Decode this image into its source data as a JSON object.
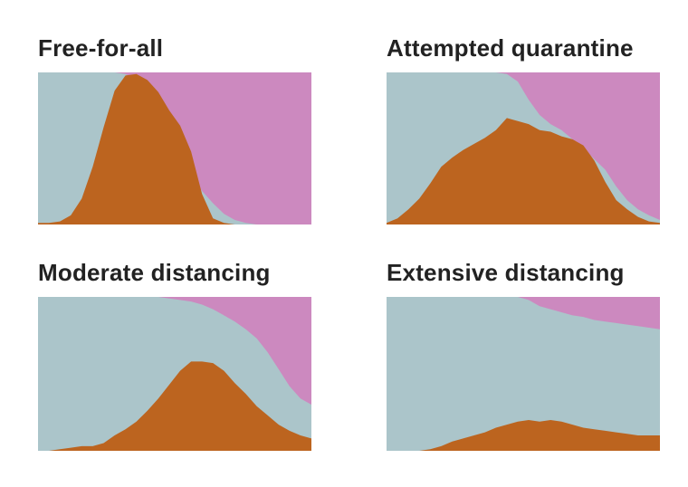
{
  "colors": {
    "healthy": "#abc5ca",
    "sick": "#bc641f",
    "recovered": "#cc89bf"
  },
  "chart_data": [
    {
      "type": "area",
      "stacking": "100%",
      "title": "Free-for-all",
      "series_order": [
        "sick",
        "healthy",
        "recovered"
      ],
      "x": [
        0,
        4,
        8,
        12,
        16,
        20,
        24,
        28,
        32,
        36,
        40,
        44,
        48,
        52,
        56,
        60,
        64,
        68,
        72,
        76,
        80,
        84,
        88,
        92,
        96,
        100
      ],
      "recovered": [
        0,
        0,
        0,
        0,
        0,
        0,
        0,
        0,
        1,
        5,
        14,
        28,
        45,
        58,
        68,
        78,
        86,
        93,
        97,
        99,
        100,
        100,
        100,
        100,
        100,
        100
      ],
      "sick": [
        1,
        1,
        2,
        6,
        17,
        38,
        64,
        88,
        98,
        99,
        95,
        87,
        75,
        65,
        48,
        20,
        4,
        1,
        0,
        0,
        0,
        0,
        0,
        0,
        0,
        0
      ]
    },
    {
      "type": "area",
      "stacking": "100%",
      "title": "Attempted quarantine",
      "series_order": [
        "sick",
        "healthy",
        "recovered"
      ],
      "x": [
        0,
        4,
        8,
        12,
        16,
        20,
        24,
        28,
        32,
        36,
        40,
        44,
        48,
        52,
        56,
        60,
        64,
        68,
        72,
        76,
        80,
        84,
        88,
        92,
        96,
        100
      ],
      "recovered": [
        0,
        0,
        0,
        0,
        0,
        0,
        0,
        0,
        0,
        0,
        0,
        1,
        6,
        18,
        28,
        34,
        38,
        44,
        50,
        57,
        64,
        75,
        84,
        90,
        94,
        97
      ],
      "sick": [
        1,
        4,
        10,
        17,
        27,
        38,
        44,
        49,
        53,
        57,
        62,
        70,
        68,
        66,
        62,
        61,
        58,
        56,
        52,
        42,
        28,
        16,
        10,
        5,
        2,
        1
      ]
    },
    {
      "type": "area",
      "stacking": "100%",
      "title": "Moderate distancing",
      "series_order": [
        "sick",
        "healthy",
        "recovered"
      ],
      "x": [
        0,
        4,
        8,
        12,
        16,
        20,
        24,
        28,
        32,
        36,
        40,
        44,
        48,
        52,
        56,
        60,
        64,
        68,
        72,
        76,
        80,
        84,
        88,
        92,
        96,
        100
      ],
      "recovered": [
        0,
        0,
        0,
        0,
        0,
        0,
        0,
        0,
        0,
        0,
        0,
        0,
        1,
        2,
        3,
        5,
        8,
        12,
        16,
        21,
        27,
        36,
        47,
        58,
        66,
        70
      ],
      "sick": [
        0,
        0,
        1,
        2,
        3,
        3,
        5,
        10,
        14,
        19,
        26,
        34,
        43,
        52,
        58,
        58,
        57,
        52,
        44,
        37,
        29,
        23,
        17,
        13,
        10,
        8
      ]
    },
    {
      "type": "area",
      "stacking": "100%",
      "title": "Extensive distancing",
      "series_order": [
        "sick",
        "healthy",
        "recovered"
      ],
      "x": [
        0,
        4,
        8,
        12,
        16,
        20,
        24,
        28,
        32,
        36,
        40,
        44,
        48,
        52,
        56,
        60,
        64,
        68,
        72,
        76,
        80,
        84,
        88,
        92,
        96,
        100
      ],
      "recovered": [
        0,
        0,
        0,
        0,
        0,
        0,
        0,
        0,
        0,
        0,
        0,
        0,
        0,
        2,
        6,
        8,
        10,
        12,
        13,
        15,
        16,
        17,
        18,
        19,
        20,
        21
      ],
      "sick": [
        0,
        0,
        0,
        0,
        1,
        3,
        6,
        8,
        10,
        12,
        15,
        17,
        19,
        20,
        19,
        20,
        19,
        17,
        15,
        14,
        13,
        12,
        11,
        10,
        10,
        10
      ]
    }
  ]
}
